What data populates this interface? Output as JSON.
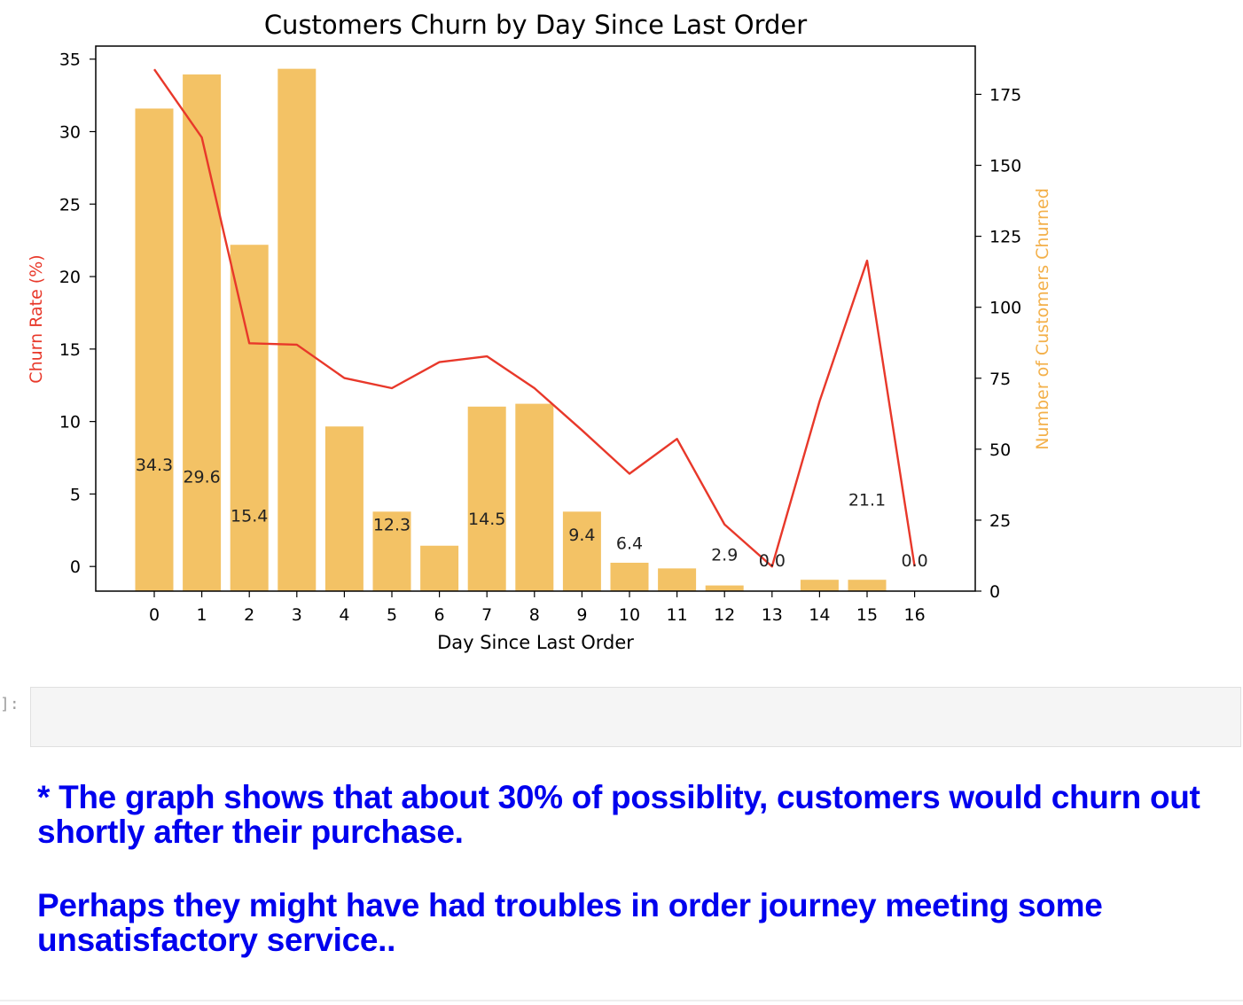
{
  "chart_data": {
    "type": "bar+line",
    "title": "Customers Churn by Day Since Last Order",
    "xlabel": "Day Since Last Order",
    "ylabel_left": "Churn Rate (%)",
    "ylabel_right": "Number of Customers Churned",
    "categories": [
      "0",
      "1",
      "2",
      "3",
      "4",
      "5",
      "6",
      "7",
      "8",
      "9",
      "10",
      "11",
      "12",
      "13",
      "14",
      "15",
      "16"
    ],
    "ylim_left": [
      -1.7,
      35.9
    ],
    "yticks_left": [
      0,
      5,
      10,
      15,
      20,
      25,
      30,
      35
    ],
    "ylim_right": [
      0,
      192
    ],
    "yticks_right": [
      0,
      25,
      50,
      75,
      100,
      125,
      150,
      175
    ],
    "grid": false,
    "series": [
      {
        "axis": "right",
        "kind": "bar",
        "values": [
          170,
          182,
          122,
          184,
          58,
          28,
          16,
          65,
          66,
          28,
          10,
          8,
          2,
          0,
          4,
          4,
          0
        ]
      },
      {
        "axis": "left",
        "kind": "line",
        "values": [
          34.3,
          29.6,
          15.4,
          15.3,
          13.0,
          12.3,
          14.1,
          14.5,
          12.3,
          9.4,
          6.4,
          8.8,
          2.9,
          0.0,
          11.4,
          21.1,
          0.0
        ]
      }
    ],
    "data_labels": [
      {
        "text": "34.3",
        "x": "0",
        "y": 6.6
      },
      {
        "text": "29.6",
        "x": "1",
        "y": 5.8
      },
      {
        "text": "15.4",
        "x": "2",
        "y": 3.1
      },
      {
        "text": "12.3",
        "x": "5",
        "y": 2.5
      },
      {
        "text": "14.5",
        "x": "7",
        "y": 2.9
      },
      {
        "text": "9.4",
        "x": "9",
        "y": 1.8
      },
      {
        "text": "6.4",
        "x": "10",
        "y": 1.2
      },
      {
        "text": "2.9",
        "x": "12",
        "y": 0.4
      },
      {
        "text": "0.0",
        "x": "13",
        "y": 0.0
      },
      {
        "text": "21.1",
        "x": "15",
        "y": 4.2
      },
      {
        "text": "0.0",
        "x": "16",
        "y": 0.0
      }
    ],
    "colors": {
      "bar": "#f3c265",
      "line": "#e8382a",
      "left_label": "#e8382a",
      "right_label": "#f3b04a",
      "axis": "#000000"
    }
  },
  "notebook": {
    "prompt_label": "]:",
    "markdown": {
      "para1": "* The graph shows that about 30% of possiblity, customers would churn out shortly after their purchase.",
      "para2": "Perhaps they might have had troubles in order journey meeting some unsatisfactory service.."
    }
  }
}
